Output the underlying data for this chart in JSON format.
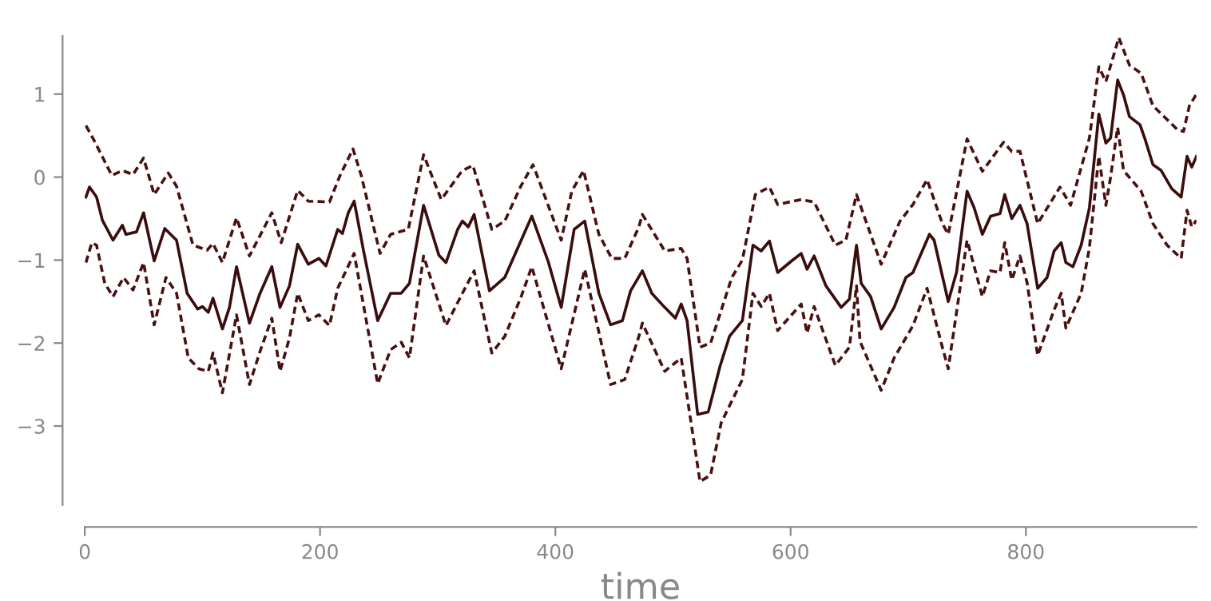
{
  "chart_data": {
    "type": "line",
    "xlabel": "time",
    "xlim": [
      0,
      945
    ],
    "ylim": [
      -3.95,
      1.7
    ],
    "xticks": [
      0,
      200,
      400,
      600,
      800
    ],
    "yticks": [
      -3,
      -2,
      -1,
      0,
      1
    ],
    "grid": false,
    "legend": false,
    "marker": "none",
    "series": [
      {
        "color": "#3a0d0d",
        "line_style": "solid",
        "x": [
          1,
          4,
          10,
          15,
          24,
          32,
          35,
          44,
          50,
          59,
          68,
          78,
          87,
          96,
          100,
          105,
          109,
          117,
          123,
          129,
          140,
          149,
          159,
          166,
          174,
          181,
          190,
          199,
          205,
          215,
          219,
          224,
          229,
          237,
          249,
          260,
          269,
          276,
          288,
          301,
          307,
          317,
          321,
          326,
          331,
          344,
          357,
          371,
          380,
          394,
          405,
          416,
          425,
          437,
          447,
          457,
          464,
          474,
          482,
          493,
          502,
          507,
          512,
          521,
          530,
          540,
          548,
          559,
          568,
          575,
          582,
          589,
          600,
          609,
          614,
          620,
          630,
          643,
          650,
          656,
          660,
          668,
          677,
          688,
          698,
          704,
          718,
          722,
          734,
          741,
          750,
          756,
          763,
          770,
          778,
          782,
          788,
          795,
          801,
          810,
          818,
          824,
          830,
          834,
          840,
          847,
          854,
          862,
          868,
          872,
          878,
          883,
          888,
          897,
          901,
          908,
          915,
          924,
          932,
          937,
          941,
          945
        ],
        "values": [
          -0.24,
          -0.12,
          -0.24,
          -0.52,
          -0.76,
          -0.58,
          -0.69,
          -0.66,
          -0.43,
          -1.01,
          -0.62,
          -0.76,
          -1.4,
          -1.59,
          -1.56,
          -1.63,
          -1.46,
          -1.83,
          -1.57,
          -1.08,
          -1.76,
          -1.4,
          -1.08,
          -1.57,
          -1.31,
          -0.81,
          -1.05,
          -0.98,
          -1.07,
          -0.63,
          -0.68,
          -0.43,
          -0.29,
          -0.89,
          -1.73,
          -1.4,
          -1.4,
          -1.28,
          -0.34,
          -0.94,
          -1.03,
          -0.63,
          -0.53,
          -0.6,
          -0.45,
          -1.37,
          -1.21,
          -0.76,
          -0.47,
          -1.02,
          -1.57,
          -0.63,
          -0.53,
          -1.4,
          -1.78,
          -1.73,
          -1.37,
          -1.13,
          -1.4,
          -1.57,
          -1.7,
          -1.53,
          -1.73,
          -2.86,
          -2.83,
          -2.28,
          -1.92,
          -1.73,
          -0.82,
          -0.89,
          -0.77,
          -1.15,
          -1.02,
          -0.92,
          -1.11,
          -0.95,
          -1.31,
          -1.57,
          -1.47,
          -0.82,
          -1.28,
          -1.44,
          -1.83,
          -1.57,
          -1.21,
          -1.15,
          -0.69,
          -0.76,
          -1.5,
          -1.15,
          -0.17,
          -0.37,
          -0.69,
          -0.47,
          -0.44,
          -0.21,
          -0.5,
          -0.34,
          -0.56,
          -1.34,
          -1.21,
          -0.89,
          -0.79,
          -1.03,
          -1.08,
          -0.82,
          -0.37,
          0.76,
          0.41,
          0.47,
          1.17,
          0.99,
          0.73,
          0.63,
          0.47,
          0.15,
          0.08,
          -0.14,
          -0.24,
          0.25,
          0.12,
          0.25
        ]
      },
      {
        "color": "#4a1010",
        "line_style": "dashed",
        "x": [
          1,
          8,
          23,
          32,
          41,
          50,
          59,
          71,
          78,
          92,
          104,
          109,
          117,
          129,
          140,
          159,
          167,
          181,
          190,
          208,
          217,
          228,
          235,
          251,
          260,
          275,
          288,
          303,
          321,
          330,
          346,
          357,
          371,
          381,
          405,
          414,
          424,
          437,
          448,
          459,
          471,
          474,
          493,
          507,
          512,
          523,
          532,
          550,
          559,
          570,
          582,
          589,
          609,
          620,
          638,
          647,
          656,
          677,
          693,
          704,
          716,
          729,
          734,
          750,
          763,
          781,
          788,
          795,
          810,
          829,
          838,
          854,
          862,
          868,
          879,
          888,
          898,
          908,
          929,
          934,
          939,
          945
        ],
        "values": [
          0.62,
          0.44,
          0.02,
          0.08,
          0.03,
          0.23,
          -0.21,
          0.05,
          -0.11,
          -0.82,
          -0.88,
          -0.8,
          -1.03,
          -0.49,
          -0.95,
          -0.43,
          -0.79,
          -0.16,
          -0.29,
          -0.3,
          0.02,
          0.34,
          0.02,
          -0.92,
          -0.69,
          -0.63,
          0.27,
          -0.27,
          0.08,
          0.14,
          -0.63,
          -0.53,
          -0.1,
          0.15,
          -0.76,
          -0.17,
          0.08,
          -0.69,
          -0.98,
          -0.98,
          -0.6,
          -0.45,
          -0.89,
          -0.86,
          -0.98,
          -2.05,
          -2.0,
          -1.21,
          -1.0,
          -0.21,
          -0.12,
          -0.33,
          -0.27,
          -0.3,
          -0.82,
          -0.76,
          -0.21,
          -1.05,
          -0.53,
          -0.33,
          -0.03,
          -0.56,
          -0.69,
          0.46,
          0.07,
          0.42,
          0.31,
          0.31,
          -0.56,
          -0.12,
          -0.34,
          0.47,
          1.33,
          1.15,
          1.68,
          1.35,
          1.25,
          0.86,
          0.57,
          0.55,
          0.86,
          1.0
        ]
      },
      {
        "color": "#4a1010",
        "line_style": "dashed",
        "x": [
          1,
          6,
          10,
          17,
          24,
          33,
          41,
          50,
          59,
          69,
          78,
          88,
          97,
          105,
          109,
          117,
          129,
          140,
          149,
          159,
          166,
          174,
          181,
          190,
          199,
          208,
          215,
          229,
          249,
          260,
          269,
          276,
          288,
          307,
          321,
          331,
          346,
          357,
          371,
          380,
          405,
          425,
          447,
          459,
          471,
          474,
          493,
          507,
          523,
          532,
          541,
          559,
          568,
          575,
          582,
          589,
          609,
          614,
          620,
          638,
          650,
          656,
          659,
          677,
          688,
          704,
          716,
          729,
          734,
          750,
          763,
          770,
          778,
          782,
          788,
          795,
          801,
          810,
          824,
          830,
          834,
          847,
          854,
          862,
          868,
          872,
          878,
          883,
          898,
          908,
          920,
          932,
          937,
          941,
          945
        ],
        "values": [
          -1.03,
          -0.79,
          -0.82,
          -1.28,
          -1.44,
          -1.21,
          -1.36,
          -1.03,
          -1.78,
          -1.21,
          -1.4,
          -2.18,
          -2.31,
          -2.34,
          -2.12,
          -2.6,
          -1.66,
          -2.5,
          -2.1,
          -1.7,
          -2.34,
          -1.94,
          -1.4,
          -1.73,
          -1.66,
          -1.79,
          -1.34,
          -0.92,
          -2.49,
          -2.08,
          -1.99,
          -2.18,
          -0.95,
          -1.79,
          -1.4,
          -1.13,
          -2.12,
          -1.92,
          -1.44,
          -1.08,
          -2.31,
          -1.11,
          -2.5,
          -2.44,
          -1.92,
          -1.76,
          -2.34,
          -2.18,
          -3.67,
          -3.59,
          -2.96,
          -2.44,
          -1.4,
          -1.56,
          -1.4,
          -1.85,
          -1.53,
          -1.88,
          -1.56,
          -2.27,
          -2.05,
          -1.31,
          -1.98,
          -2.57,
          -2.18,
          -1.79,
          -1.34,
          -2.05,
          -2.31,
          -0.76,
          -1.44,
          -1.13,
          -1.15,
          -0.79,
          -1.24,
          -0.95,
          -1.27,
          -2.15,
          -1.6,
          -1.4,
          -1.82,
          -1.4,
          -0.85,
          0.25,
          -0.34,
          0.0,
          0.6,
          0.08,
          -0.17,
          -0.56,
          -0.82,
          -0.98,
          -0.4,
          -0.6,
          -0.52
        ]
      }
    ]
  }
}
